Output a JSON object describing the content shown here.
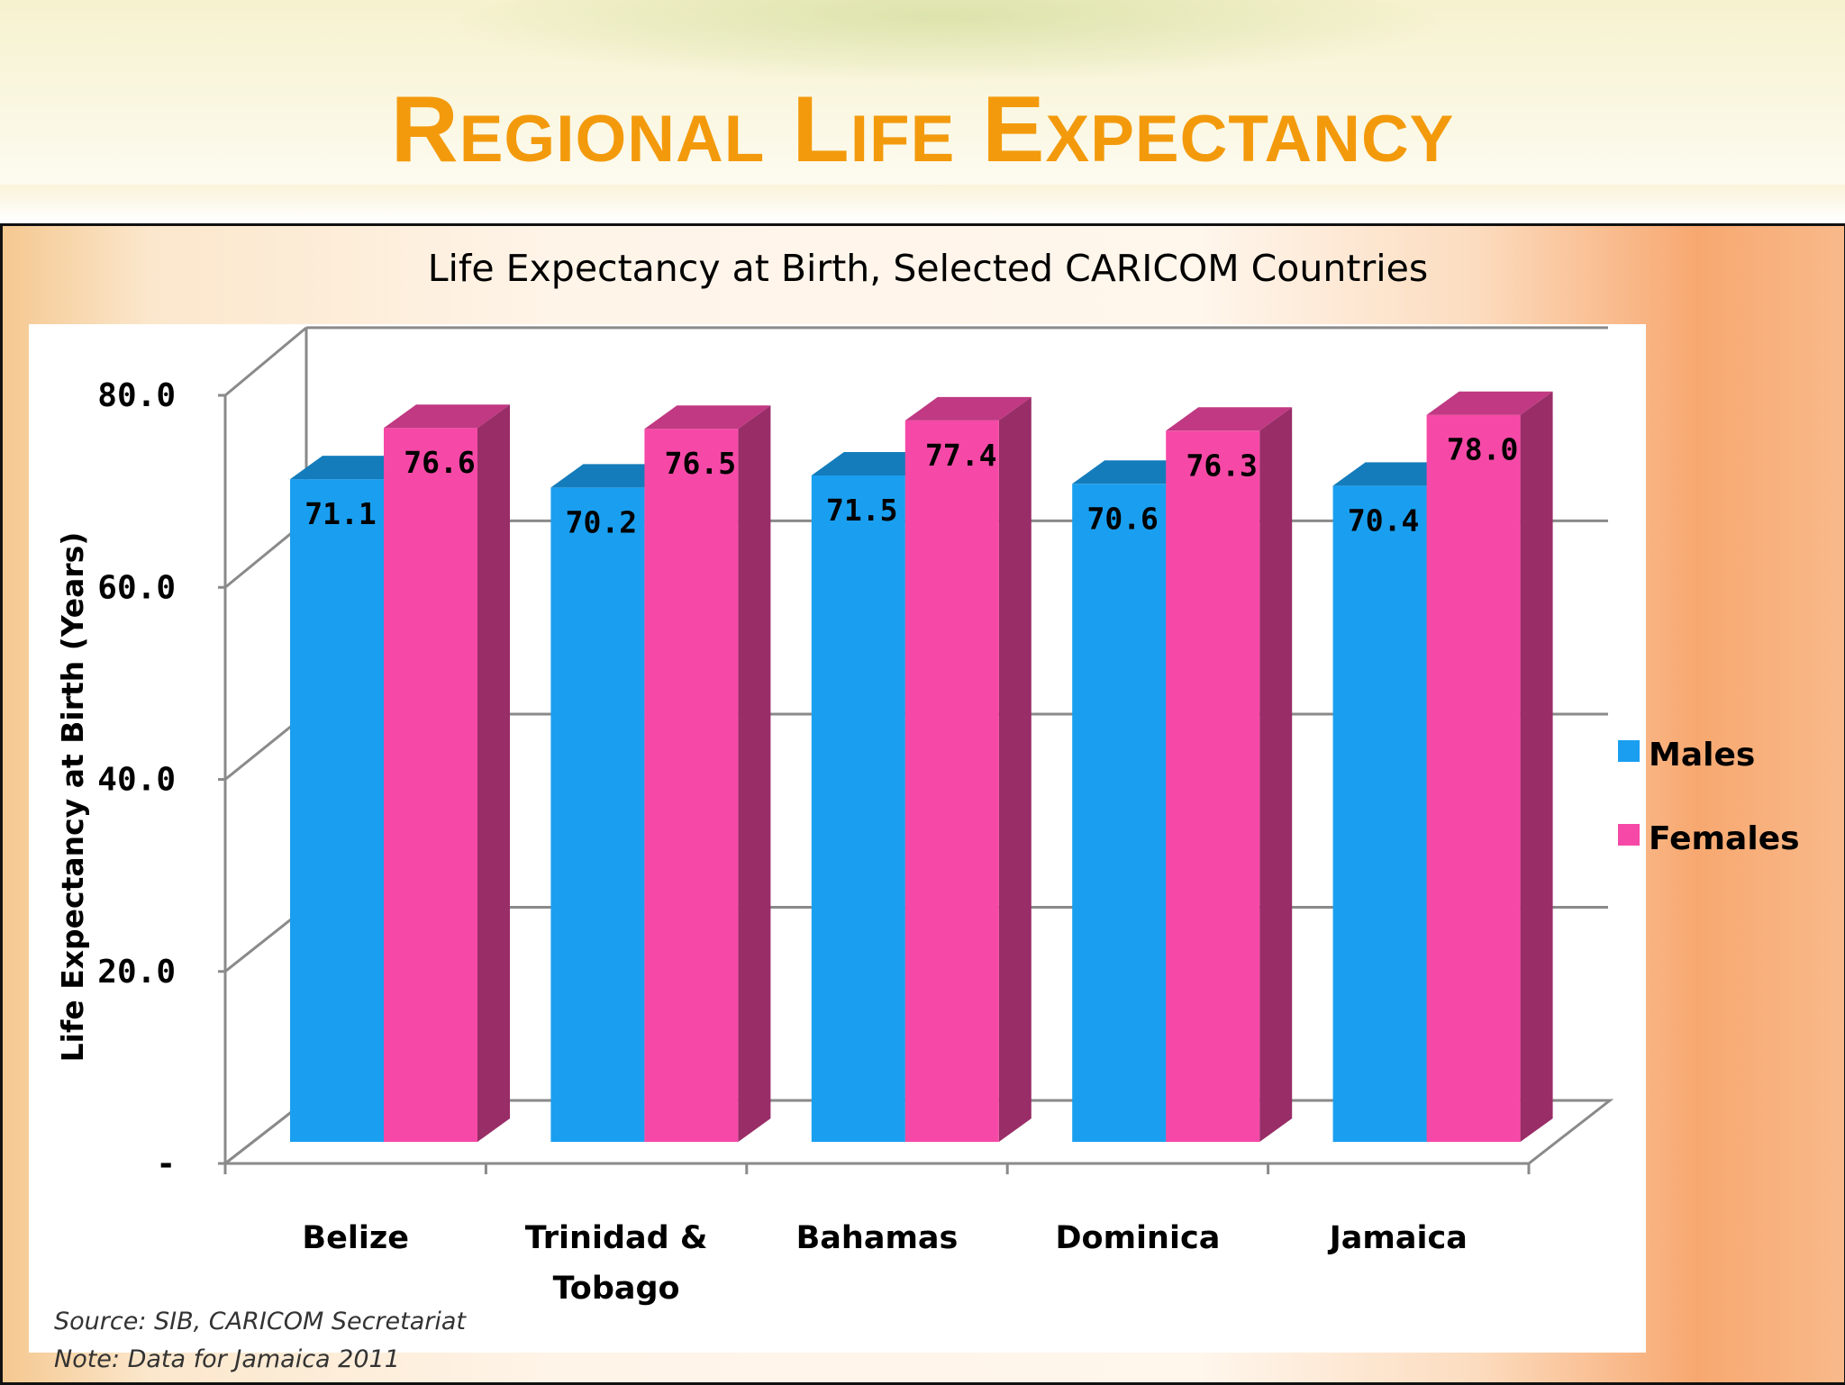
{
  "slide_title": "Regional Life Expectancy",
  "chart_data": {
    "type": "bar",
    "title": "Life Expectancy at Birth, Selected CARICOM Countries",
    "ylabel": "Life Expectancy at Birth (Years)",
    "xlabel": "",
    "ylim": [
      0,
      80
    ],
    "yticks": [
      "-",
      "20.0",
      "40.0",
      "60.0",
      "80.0"
    ],
    "categories": [
      "Belize",
      "Trinidad & Tobago",
      "Bahamas",
      "Dominica",
      "Jamaica"
    ],
    "series": [
      {
        "name": "Males",
        "color": "#1a9ff0",
        "values": [
          71.1,
          70.2,
          71.5,
          70.6,
          70.4
        ]
      },
      {
        "name": "Females",
        "color": "#f649a7",
        "values": [
          76.6,
          76.5,
          77.4,
          76.3,
          78.0
        ]
      }
    ],
    "legend_position": "right",
    "grid": true,
    "style": "3d-clustered-column"
  },
  "notes": {
    "source": "Source:  SIB, CARICOM Secretariat",
    "data_note": "Note:  Data for Jamaica 2011"
  }
}
